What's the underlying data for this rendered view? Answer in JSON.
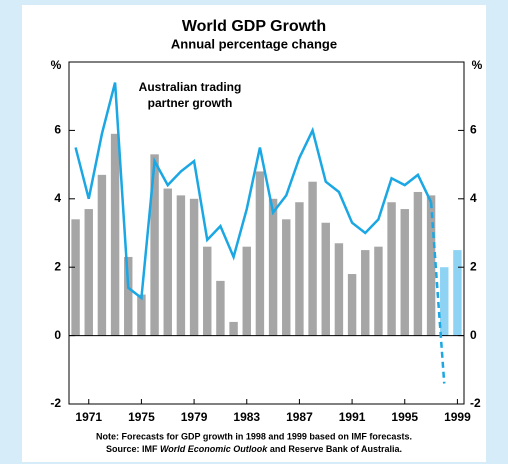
{
  "chart_data": {
    "type": "bar_line",
    "title": "World GDP Growth",
    "subtitle": "Annual percentage change",
    "y_unit_label": "%",
    "y2_unit_label": "%",
    "x": [
      1970,
      1971,
      1972,
      1973,
      1974,
      1975,
      1976,
      1977,
      1978,
      1979,
      1980,
      1981,
      1982,
      1983,
      1984,
      1985,
      1986,
      1987,
      1988,
      1989,
      1990,
      1991,
      1992,
      1993,
      1994,
      1995,
      1996,
      1997,
      1998,
      1999
    ],
    "xlim": [
      1969.5,
      1999.5
    ],
    "xticks": [
      1971,
      1975,
      1979,
      1983,
      1987,
      1991,
      1995,
      1999
    ],
    "ylim": [
      -2,
      8
    ],
    "yticks": [
      -2,
      0,
      2,
      4,
      6
    ],
    "y2lim": [
      -2,
      8
    ],
    "y2ticks": [
      -2,
      0,
      2,
      4,
      6
    ],
    "forecast_from": 1998,
    "series": [
      {
        "name": "World GDP growth",
        "kind": "bar",
        "color": "#a6a6a6",
        "forecast_color": "#8fd3f4",
        "values": [
          3.4,
          3.7,
          4.7,
          5.9,
          2.3,
          1.2,
          5.3,
          4.3,
          4.1,
          4.0,
          2.6,
          1.6,
          0.4,
          2.6,
          4.8,
          4.0,
          3.4,
          3.9,
          4.5,
          3.3,
          2.7,
          1.8,
          2.5,
          2.6,
          3.9,
          3.7,
          4.2,
          4.1,
          2.0,
          2.5
        ]
      },
      {
        "name": "Australian trading partner growth",
        "kind": "line",
        "color": "#1aa7e3",
        "values": [
          5.5,
          4.0,
          5.9,
          7.4,
          1.4,
          1.1,
          5.1,
          4.4,
          4.8,
          5.1,
          2.8,
          3.2,
          2.3,
          3.7,
          5.5,
          3.6,
          4.1,
          5.2,
          6.0,
          4.5,
          4.2,
          3.3,
          3.0,
          3.4,
          4.6,
          4.4,
          4.7,
          3.9,
          -1.4,
          null
        ]
      }
    ],
    "annotation": [
      "Australian trading",
      "partner growth"
    ],
    "note": "Note: Forecasts for GDP growth in 1998 and 1999 based on IMF forecasts.",
    "source": [
      "Source: IMF ",
      "World Economic Outlook",
      " and Reserve Bank of Australia."
    ]
  }
}
